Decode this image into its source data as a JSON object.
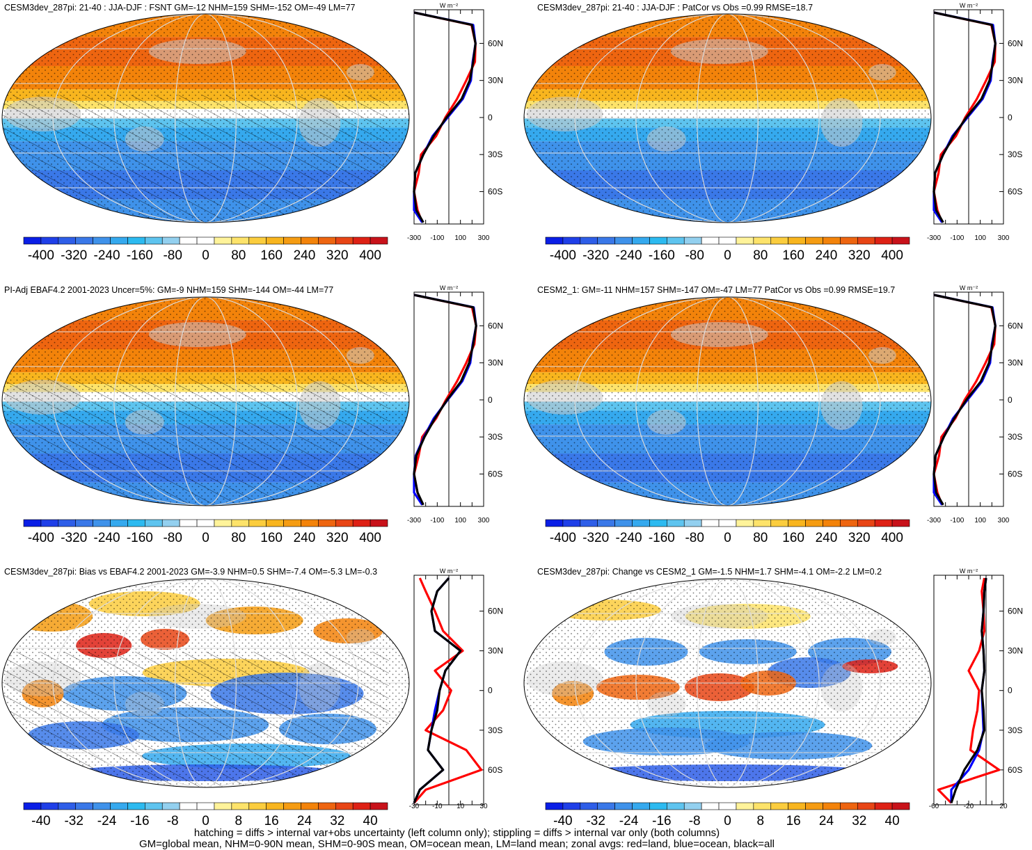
{
  "panels": [
    {
      "title": "CESM3dev_287pi: 21-40 : JJA-DJF : FSNT GM=-12 NHM=159 SHM=-152 OM=-49 LM=77",
      "kind": "abs",
      "hatched": true,
      "colorbar_labels": [
        "-400",
        "-320",
        "-240",
        "-160",
        "-80",
        "0",
        "80",
        "160",
        "240",
        "320",
        "400"
      ],
      "profile_ticks": [
        "-300",
        "-100",
        "100",
        "300"
      ],
      "lat_labels": [
        "60N",
        "30N",
        "0",
        "30S",
        "60S"
      ],
      "unit_label": "W m⁻²"
    },
    {
      "title": "CESM3dev_287pi: 21-40 : JJA-DJF : PatCor vs Obs =0.99 RMSE=18.7",
      "kind": "abs",
      "hatched": false,
      "colorbar_labels": [
        "-400",
        "-320",
        "-240",
        "-160",
        "-80",
        "0",
        "80",
        "160",
        "240",
        "320",
        "400"
      ],
      "profile_ticks": [
        "-300",
        "-100",
        "100",
        "300"
      ],
      "lat_labels": [
        "60N",
        "30N",
        "0",
        "30S",
        "60S"
      ],
      "unit_label": "W m⁻²"
    },
    {
      "title": "PI-Adj EBAF4.2 2001-2023 Uncer=5%: GM=-9 NHM=159 SHM=-144 OM=-44 LM=77",
      "kind": "abs",
      "hatched": true,
      "colorbar_labels": [
        "-400",
        "-320",
        "-240",
        "-160",
        "-80",
        "0",
        "80",
        "160",
        "240",
        "320",
        "400"
      ],
      "profile_ticks": [
        "-300",
        "-100",
        "100",
        "300"
      ],
      "lat_labels": [
        "60N",
        "30N",
        "0",
        "30S",
        "60S"
      ],
      "unit_label": "W m⁻²"
    },
    {
      "title": "CESM2_1: GM=-11 NHM=157 SHM=-147 OM=-47 LM=77 PatCor vs Obs =0.99 RMSE=19.7",
      "kind": "abs",
      "hatched": false,
      "colorbar_labels": [
        "-400",
        "-320",
        "-240",
        "-160",
        "-80",
        "0",
        "80",
        "160",
        "240",
        "320",
        "400"
      ],
      "profile_ticks": [
        "-300",
        "-100",
        "100",
        "300"
      ],
      "lat_labels": [
        "60N",
        "30N",
        "0",
        "30S",
        "60S"
      ],
      "unit_label": "W m⁻²"
    },
    {
      "title": "CESM3dev_287pi: Bias vs EBAF4.2 2001-2023 GM=-3.9 NHM=0.5 SHM=-7.4 OM=-5.3 LM=-0.3",
      "kind": "diff",
      "hatched": true,
      "colorbar_labels": [
        "-40",
        "-32",
        "-24",
        "-16",
        "-8",
        "0",
        "8",
        "16",
        "24",
        "32",
        "40"
      ],
      "profile_ticks": [
        "-30",
        "-10",
        "10",
        "30"
      ],
      "lat_labels": [
        "60N",
        "30N",
        "0",
        "30S",
        "60S"
      ],
      "unit_label": "W m⁻²"
    },
    {
      "title": "CESM3dev_287pi: Change vs CESM2_1 GM=-1.5 NHM=1.7 SHM=-4.1 OM=-2.2 LM=0.2",
      "kind": "diff",
      "hatched": false,
      "colorbar_labels": [
        "-40",
        "-32",
        "-24",
        "-16",
        "-8",
        "0",
        "8",
        "16",
        "24",
        "32",
        "40"
      ],
      "profile_ticks": [
        "-60",
        "-20",
        "20"
      ],
      "lat_labels": [
        "60N",
        "30N",
        "0",
        "30S",
        "60S"
      ],
      "unit_label": "W m⁻²"
    }
  ],
  "colors": {
    "palette": [
      "#0a1ee6",
      "#1f3fe8",
      "#2e5ee8",
      "#3a78e8",
      "#3f92ea",
      "#35a9ee",
      "#2cbaf0",
      "#5ec4ef",
      "#93d0ef",
      "#ffffff",
      "#ffffff",
      "#fff39a",
      "#fde36a",
      "#fbcd3e",
      "#f8b51e",
      "#f59c12",
      "#f3830a",
      "#ee6510",
      "#e84515",
      "#de2115",
      "#c8121a"
    ],
    "land_mask": "#c8c8c8",
    "land_line": "#ff0000",
    "ocean_line": "#0000ff",
    "all_line": "#000000"
  },
  "footer": {
    "line1": "hatching = diffs > internal var+obs uncertainty (left column only); stippling = diffs > internal var only (both columns)",
    "line2": "GM=global mean, NHM=0-90N mean, SHM=0-90S mean, OM=ocean mean, LM=land mean; zonal avgs: red=land, blue=ocean, black=all"
  },
  "chart_data": [
    {
      "type": "heatmap",
      "title": "CESM3dev_287pi: 21-40 : JJA-DJF : FSNT GM=-12 NHM=159 SHM=-152 OM=-49 LM=77",
      "colorbar": [
        -400,
        -320,
        -240,
        -160,
        -80,
        0,
        80,
        160,
        240,
        320,
        400
      ],
      "zonal_profile": {
        "ylabel": "W m-2",
        "xlim": [
          -300,
          300
        ],
        "lat": [
          85,
          75,
          60,
          45,
          30,
          15,
          0,
          -15,
          -30,
          -45,
          -60,
          -75,
          -85
        ],
        "series": [
          {
            "name": "all",
            "values": [
              -300,
              200,
              230,
              210,
              180,
              110,
              -20,
              -130,
              -220,
              -290,
              -330,
              -280,
              -220
            ]
          },
          {
            "name": "land",
            "values": [
              -300,
              195,
              230,
              225,
              150,
              70,
              -30,
              -110,
              -240,
              -260,
              -310,
              -270,
              -230
            ]
          },
          {
            "name": "ocean",
            "values": [
              -300,
              210,
              230,
              205,
              190,
              120,
              -10,
              -140,
              -220,
              -290,
              -330,
              -310,
              -230
            ]
          }
        ]
      }
    },
    {
      "type": "heatmap",
      "title": "CESM3dev_287pi: 21-40 : JJA-DJF : PatCor vs Obs =0.99 RMSE=18.7",
      "colorbar": [
        -400,
        -320,
        -240,
        -160,
        -80,
        0,
        80,
        160,
        240,
        320,
        400
      ],
      "zonal_profile": {
        "ylabel": "W m-2",
        "xlim": [
          -300,
          300
        ],
        "lat": [
          85,
          75,
          60,
          45,
          30,
          15,
          0,
          -15,
          -30,
          -45,
          -60,
          -75,
          -85
        ],
        "series": [
          {
            "name": "all",
            "values": [
              -300,
              200,
              230,
              210,
              180,
              110,
              -20,
              -130,
              -220,
              -290,
              -330,
              -280,
              -220
            ]
          },
          {
            "name": "land",
            "values": [
              -300,
              195,
              230,
              225,
              150,
              70,
              -30,
              -110,
              -240,
              -260,
              -310,
              -270,
              -230
            ]
          },
          {
            "name": "ocean",
            "values": [
              -300,
              210,
              230,
              205,
              190,
              120,
              -10,
              -140,
              -220,
              -290,
              -330,
              -310,
              -230
            ]
          }
        ]
      }
    },
    {
      "type": "heatmap",
      "title": "PI-Adj EBAF4.2 2001-2023 Uncer=5%: GM=-9 NHM=159 SHM=-144 OM=-44 LM=77",
      "colorbar": [
        -400,
        -320,
        -240,
        -160,
        -80,
        0,
        80,
        160,
        240,
        320,
        400
      ],
      "zonal_profile": {
        "ylabel": "W m-2",
        "xlim": [
          -300,
          300
        ],
        "lat": [
          85,
          75,
          60,
          45,
          30,
          15,
          0,
          -15,
          -30,
          -45,
          -60,
          -75,
          -85
        ],
        "series": [
          {
            "name": "all",
            "values": [
              -300,
              210,
              235,
              210,
              175,
              105,
              -15,
              -120,
              -210,
              -280,
              -320,
              -270,
              -220
            ]
          },
          {
            "name": "land",
            "values": [
              -300,
              200,
              235,
              220,
              150,
              70,
              -25,
              -110,
              -230,
              -260,
              -300,
              -270,
              -230
            ]
          },
          {
            "name": "ocean",
            "values": [
              -300,
              215,
              235,
              205,
              185,
              115,
              -10,
              -130,
              -215,
              -285,
              -325,
              -300,
              -230
            ]
          }
        ]
      }
    },
    {
      "type": "heatmap",
      "title": "CESM2_1: GM=-11 NHM=157 SHM=-147 OM=-47 LM=77 PatCor vs Obs =0.99 RMSE=19.7",
      "colorbar": [
        -400,
        -320,
        -240,
        -160,
        -80,
        0,
        80,
        160,
        240,
        320,
        400
      ],
      "zonal_profile": {
        "ylabel": "W m-2",
        "xlim": [
          -300,
          300
        ],
        "lat": [
          85,
          75,
          60,
          45,
          30,
          15,
          0,
          -15,
          -30,
          -45,
          -60,
          -75,
          -85
        ],
        "series": [
          {
            "name": "all",
            "values": [
              -300,
              200,
              230,
              205,
              175,
              105,
              -20,
              -125,
              -215,
              -285,
              -325,
              -280,
              -220
            ]
          },
          {
            "name": "land",
            "values": [
              -300,
              195,
              230,
              220,
              145,
              65,
              -35,
              -115,
              -235,
              -255,
              -305,
              -270,
              -230
            ]
          },
          {
            "name": "ocean",
            "values": [
              -300,
              205,
              230,
              200,
              185,
              115,
              -10,
              -135,
              -215,
              -285,
              -325,
              -305,
              -230
            ]
          }
        ]
      }
    },
    {
      "type": "heatmap",
      "title": "CESM3dev_287pi: Bias vs EBAF4.2 2001-2023 GM=-3.9 NHM=0.5 SHM=-7.4 OM=-5.3 LM=-0.3",
      "colorbar": [
        -40,
        -32,
        -24,
        -16,
        -8,
        0,
        8,
        16,
        24,
        32,
        40
      ],
      "zonal_profile": {
        "ylabel": "W m-2",
        "xlim": [
          -30,
          30
        ],
        "lat": [
          85,
          75,
          60,
          45,
          30,
          15,
          0,
          -15,
          -30,
          -45,
          -60,
          -75,
          -85
        ],
        "series": [
          {
            "name": "all",
            "values": [
              0,
              -10,
              -15,
              -12,
              10,
              -3,
              -8,
              -10,
              -15,
              -18,
              -5,
              -25,
              -30
            ]
          },
          {
            "name": "land",
            "values": [
              -25,
              -20,
              -12,
              -5,
              12,
              -12,
              2,
              -5,
              -20,
              15,
              28,
              -20,
              -30
            ]
          },
          {
            "name": "ocean",
            "values": [
              0,
              -10,
              -15,
              -12,
              10,
              -3,
              -8,
              -12,
              -15,
              -18,
              -5,
              -25,
              -30
            ]
          }
        ]
      }
    },
    {
      "type": "heatmap",
      "title": "CESM3dev_287pi: Change vs CESM2_1 GM=-1.5 NHM=1.7 SHM=-4.1 OM=-2.2 LM=0.2",
      "colorbar": [
        -40,
        -32,
        -24,
        -16,
        -8,
        0,
        8,
        16,
        24,
        32,
        40
      ],
      "zonal_profile": {
        "ylabel": "W m-2",
        "xlim": [
          -60,
          20
        ],
        "lat": [
          85,
          75,
          60,
          45,
          30,
          15,
          0,
          -15,
          -30,
          -45,
          -60,
          -75,
          -85
        ],
        "series": [
          {
            "name": "all",
            "values": [
              0,
              -2,
              -3,
              -5,
              -3,
              -2,
              -5,
              -3,
              -2,
              -10,
              -25,
              -35,
              -40
            ]
          },
          {
            "name": "land",
            "values": [
              -2,
              -5,
              -3,
              -2,
              -8,
              -20,
              -8,
              -10,
              -15,
              -18,
              15,
              -55,
              -40
            ]
          },
          {
            "name": "ocean",
            "values": [
              0,
              -2,
              -3,
              -5,
              -3,
              -2,
              -5,
              -4,
              -3,
              -8,
              -20,
              -40,
              -40
            ]
          }
        ]
      }
    }
  ]
}
